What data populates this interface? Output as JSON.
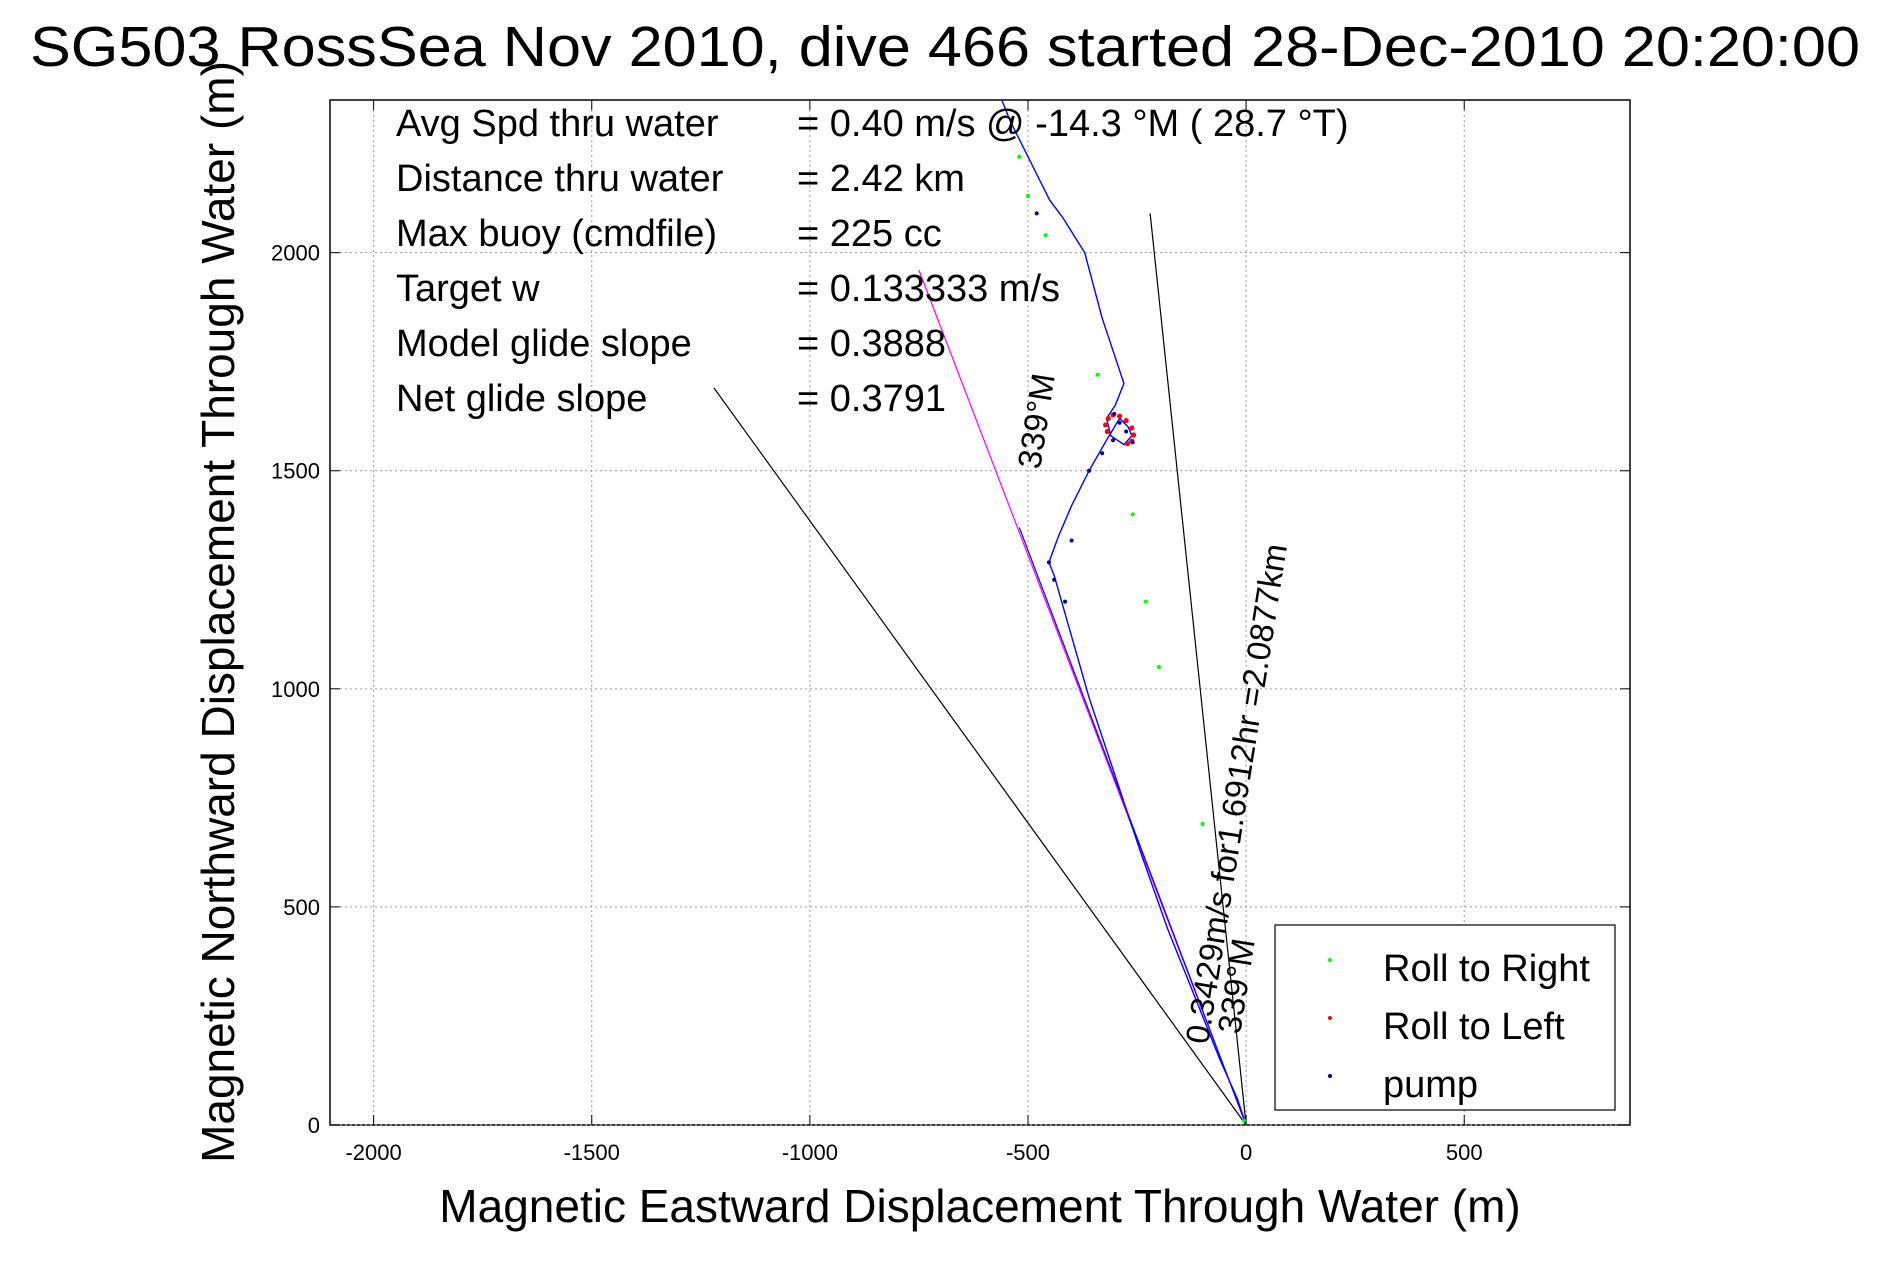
{
  "chart_data": {
    "type": "scatter",
    "title": "SG503 RossSea Nov 2010, dive 466 started 28-Dec-2010 20:20:00",
    "xlabel": "Magnetic Eastward Displacement Through Water (m)",
    "ylabel": "Magnetic Northward Displacement Through Water (m)",
    "xlim": [
      -2100,
      880
    ],
    "ylim": [
      0,
      2350
    ],
    "xticks": [
      -2000,
      -1500,
      -1000,
      -500,
      0,
      500
    ],
    "yticks": [
      0,
      500,
      1000,
      1500,
      2000
    ],
    "grid": true,
    "legend_position": "lower-right",
    "info_lines": [
      {
        "label": "Avg Spd thru water",
        "value": "=  0.40 m/s @ -14.3 °M ( 28.7 °T)"
      },
      {
        "label": "Distance thru water",
        "value": "=  2.42 km"
      },
      {
        "label": "Max buoy (cmdfile)",
        "value": "= 225 cc"
      },
      {
        "label": "Target w",
        "value": "= 0.133333 m/s"
      },
      {
        "label": "Model glide slope",
        "value": "= 0.3888"
      },
      {
        "label": "Net glide slope",
        "value": "= 0.3791"
      }
    ],
    "annotations": {
      "course_long": "0.3429m/s for1.6912hr =2.0877km",
      "course_long_heading": "339°M",
      "course_short_heading": "339°M"
    },
    "track": {
      "color": "#0000ff",
      "x": [
        0,
        -20,
        -60,
        -120,
        -180,
        -240,
        -300,
        -360,
        -400,
        -440,
        -452,
        -430,
        -400,
        -360,
        -320,
        -290,
        -270,
        -262,
        -280,
        -310,
        -320,
        -300,
        -280,
        -330,
        -370,
        -420,
        -450,
        -480,
        -510,
        -540,
        -560
      ],
      "y": [
        0,
        60,
        150,
        300,
        450,
        620,
        800,
        980,
        1120,
        1260,
        1290,
        1350,
        1420,
        1500,
        1570,
        1620,
        1600,
        1580,
        1560,
        1580,
        1620,
        1650,
        1700,
        1850,
        2000,
        2080,
        2120,
        2180,
        2240,
        2300,
        2350
      ]
    },
    "series": [
      {
        "name": "Roll to Right",
        "color": "#00ff00",
        "x": [
          -520,
          -500,
          -460,
          -340,
          -260,
          -230,
          -200,
          -100,
          -5
        ],
        "y": [
          2220,
          2130,
          2040,
          1720,
          1400,
          1200,
          1050,
          690,
          10
        ]
      },
      {
        "name": "Roll to Left",
        "color": "#ff0000",
        "x": [
          -318,
          -322,
          -316,
          -305,
          -290,
          -275,
          -262,
          -258,
          -262,
          -272
        ],
        "y": [
          1590,
          1605,
          1620,
          1628,
          1625,
          1615,
          1598,
          1582,
          1568,
          1562
        ]
      },
      {
        "name": "pump",
        "color": "#00008b",
        "x": [
          -480,
          -452,
          -440,
          -415,
          -400,
          -360,
          -330,
          -305,
          -302,
          -290,
          -275,
          -260
        ],
        "y": [
          2090,
          1290,
          1250,
          1200,
          1340,
          1500,
          1540,
          1570,
          1630,
          1610,
          1590,
          1565
        ]
      }
    ],
    "reference_lines": [
      {
        "color": "#000000",
        "x": [
          0,
          -1220
        ],
        "y": [
          0,
          1690
        ]
      },
      {
        "color": "#000000",
        "x": [
          0,
          -220
        ],
        "y": [
          0,
          2090
        ]
      },
      {
        "color": "#ff00ff",
        "x": [
          0,
          -750
        ],
        "y": [
          0,
          1960
        ]
      },
      {
        "color": "#0000ff",
        "x": [
          0,
          -520
        ],
        "y": [
          0,
          1370
        ]
      }
    ]
  }
}
